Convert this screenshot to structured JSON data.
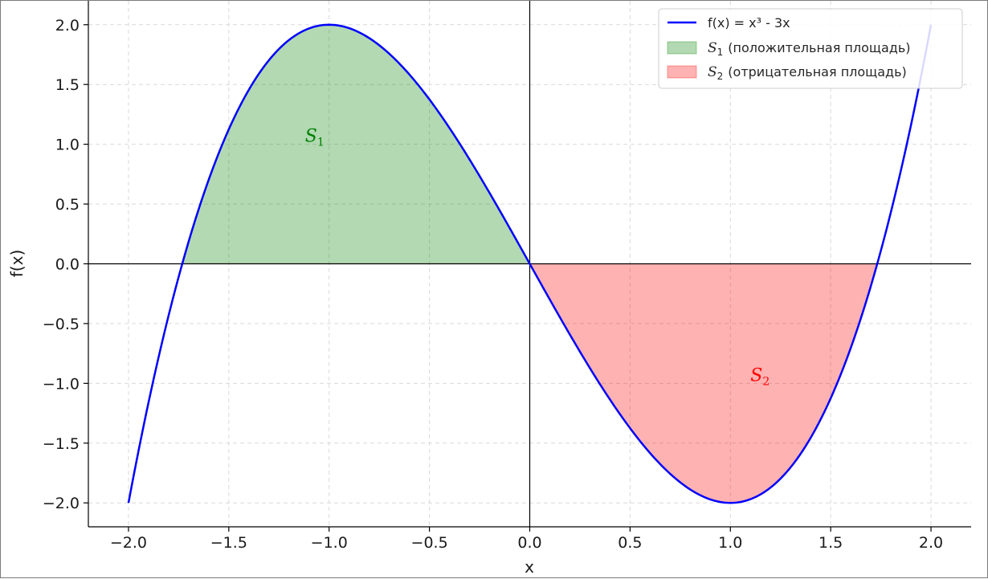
{
  "chart_data": {
    "type": "line",
    "function_label": "f(x) = x³ - 3x",
    "xlabel": "x",
    "ylabel": "f(x)",
    "xlim": [
      -2.2,
      2.2
    ],
    "ylim": [
      -2.2,
      2.2
    ],
    "x_ticks": [
      -2.0,
      -1.5,
      -1.0,
      -0.5,
      0.0,
      0.5,
      1.0,
      1.5,
      2.0
    ],
    "x_tick_labels": [
      "−2.0",
      "−1.5",
      "−1.0",
      "−0.5",
      "0.0",
      "0.5",
      "1.0",
      "1.5",
      "2.0"
    ],
    "y_ticks": [
      -2.0,
      -1.5,
      -1.0,
      -0.5,
      0.0,
      0.5,
      1.0,
      1.5,
      2.0
    ],
    "y_tick_labels": [
      "−2.0",
      "−1.5",
      "−1.0",
      "−0.5",
      "0.0",
      "0.5",
      "1.0",
      "1.5",
      "2.0"
    ],
    "grid": true,
    "legend_position": "top-right",
    "series": [
      {
        "name": "f(x) = x³ - 3x",
        "color": "#0000ff",
        "x_range": [
          -2.0,
          2.0
        ],
        "x": [
          -2.0,
          -1.8,
          -1.6,
          -1.4,
          -1.2,
          -1.0,
          -0.8,
          -0.6,
          -0.4,
          -0.2,
          0.0,
          0.2,
          0.4,
          0.6,
          0.8,
          1.0,
          1.2,
          1.4,
          1.6,
          1.8,
          2.0
        ],
        "y": [
          -2.0,
          -0.432,
          0.704,
          1.456,
          1.872,
          2.0,
          1.888,
          1.584,
          1.136,
          0.592,
          0.0,
          -0.592,
          -1.136,
          -1.584,
          -1.888,
          -2.0,
          -1.872,
          -1.456,
          -0.704,
          0.432,
          2.0
        ]
      }
    ],
    "shaded_regions": [
      {
        "name": "S1",
        "legend_label": "(положительная площадь)",
        "x_range": [
          -1.732,
          0.0
        ],
        "color": "#008000",
        "opacity": 0.3,
        "label": "S",
        "label_sub": "1",
        "label_at": [
          -1.12,
          1.02
        ],
        "label_color": "#008000"
      },
      {
        "name": "S2",
        "legend_label": "(отрицательная площадь)",
        "x_range": [
          0.0,
          1.732
        ],
        "color": "#ff0000",
        "opacity": 0.3,
        "label": "S",
        "label_sub": "2",
        "label_at": [
          1.1,
          -0.98
        ],
        "label_color": "#ff0000"
      }
    ]
  }
}
